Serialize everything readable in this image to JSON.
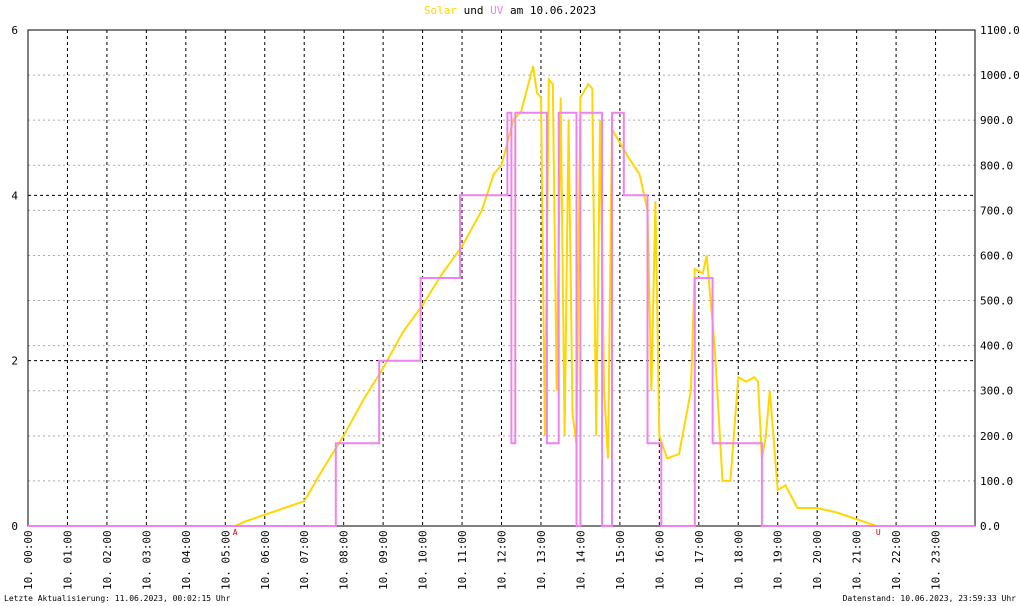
{
  "chart_data": {
    "type": "line",
    "title_and": "und",
    "title_date": "am 10.06.2023",
    "xlim": [
      0,
      24
    ],
    "xticks": [
      {
        "value": 0,
        "label": "10. 00:00"
      },
      {
        "value": 1,
        "label": "10. 01:00"
      },
      {
        "value": 2,
        "label": "10. 02:00"
      },
      {
        "value": 3,
        "label": "10. 03:00"
      },
      {
        "value": 4,
        "label": "10. 04:00"
      },
      {
        "value": 5,
        "label": "10. 05:00"
      },
      {
        "value": 6,
        "label": "10. 06:00"
      },
      {
        "value": 7,
        "label": "10. 07:00"
      },
      {
        "value": 8,
        "label": "10. 08:00"
      },
      {
        "value": 9,
        "label": "10. 09:00"
      },
      {
        "value": 10,
        "label": "10. 10:00"
      },
      {
        "value": 11,
        "label": "10. 11:00"
      },
      {
        "value": 12,
        "label": "10. 12:00"
      },
      {
        "value": 13,
        "label": "10. 13:00"
      },
      {
        "value": 14,
        "label": "10. 14:00"
      },
      {
        "value": 15,
        "label": "10. 15:00"
      },
      {
        "value": 16,
        "label": "10. 16:00"
      },
      {
        "value": 17,
        "label": "10. 17:00"
      },
      {
        "value": 18,
        "label": "10. 18:00"
      },
      {
        "value": 19,
        "label": "10. 19:00"
      },
      {
        "value": 20,
        "label": "10. 20:00"
      },
      {
        "value": 21,
        "label": "10. 21:00"
      },
      {
        "value": 22,
        "label": "10. 22:00"
      },
      {
        "value": 23,
        "label": "10. 23:00"
      }
    ],
    "ylim": [
      0,
      6
    ],
    "yticks": [
      0,
      2,
      4,
      6
    ],
    "y2lim": [
      0,
      1100
    ],
    "y2ticks": [
      {
        "value": 0,
        "label": "0.0"
      },
      {
        "value": 100,
        "label": "100.0"
      },
      {
        "value": 200,
        "label": "200.0"
      },
      {
        "value": 300,
        "label": "300.0"
      },
      {
        "value": 400,
        "label": "400.0"
      },
      {
        "value": 500,
        "label": "500.0"
      },
      {
        "value": 600,
        "label": "600.0"
      },
      {
        "value": 700,
        "label": "700.0"
      },
      {
        "value": 800,
        "label": "800.0"
      },
      {
        "value": 900,
        "label": "900.0"
      },
      {
        "value": 1000,
        "label": "1000.0"
      },
      {
        "value": 1100,
        "label": "1100.0"
      }
    ],
    "grid": true,
    "annotations": [
      {
        "x": 5.25,
        "label": "A"
      },
      {
        "x": 21.55,
        "label": "U"
      }
    ],
    "series": [
      {
        "name": "Solar",
        "color": "#ffd700",
        "axis": "y2",
        "x": [
          0,
          5.25,
          5.5,
          6,
          6.5,
          7,
          7.5,
          8,
          8.5,
          9,
          9.5,
          10,
          10.5,
          11,
          11.5,
          11.8,
          12,
          12.3,
          12.5,
          12.8,
          12.9,
          13,
          13.1,
          13.2,
          13.3,
          13.4,
          13.5,
          13.6,
          13.7,
          13.8,
          13.9,
          14,
          14.2,
          14.3,
          14.4,
          14.5,
          14.6,
          14.7,
          14.8,
          15,
          15.2,
          15.5,
          15.7,
          15.8,
          15.9,
          16,
          16.2,
          16.5,
          16.8,
          16.9,
          17.1,
          17.2,
          17.3,
          17.4,
          17.6,
          17.8,
          18,
          18.2,
          18.4,
          18.5,
          18.6,
          18.7,
          18.8,
          19,
          19.2,
          19.5,
          20,
          20.5,
          21,
          21.5,
          24
        ],
        "values": [
          0,
          0,
          10,
          25,
          40,
          55,
          130,
          200,
          280,
          350,
          430,
          490,
          560,
          620,
          700,
          780,
          800,
          900,
          920,
          1020,
          960,
          950,
          200,
          990,
          980,
          300,
          950,
          200,
          900,
          250,
          180,
          950,
          980,
          970,
          200,
          900,
          300,
          150,
          880,
          850,
          820,
          780,
          700,
          300,
          720,
          200,
          150,
          160,
          300,
          570,
          560,
          600,
          500,
          400,
          100,
          100,
          330,
          320,
          330,
          320,
          150,
          200,
          300,
          80,
          90,
          40,
          40,
          30,
          15,
          0,
          0
        ]
      },
      {
        "name": "UV",
        "color": "#ee82ee",
        "x": [
          0,
          7.8,
          7.8,
          8.9,
          8.9,
          9.95,
          9.95,
          10.95,
          10.95,
          11.95,
          11.95,
          12.15,
          12.15,
          12.25,
          12.25,
          12.35,
          12.35,
          13.15,
          13.15,
          13.45,
          13.45,
          13.9,
          13.9,
          14.0,
          14.0,
          14.55,
          14.55,
          14.8,
          14.8,
          15.1,
          15.1,
          15.7,
          15.7,
          16.05,
          16.05,
          16.9,
          16.9,
          17.35,
          17.35,
          18.0,
          18.0,
          18.6,
          18.6,
          24
        ],
        "values": [
          0,
          0,
          1,
          1,
          2,
          2,
          3,
          3,
          4,
          4,
          4,
          4,
          5,
          5,
          1,
          1,
          5,
          5,
          1,
          1,
          5,
          5,
          0,
          0,
          5,
          5,
          0,
          0,
          5,
          5,
          4,
          4,
          1,
          1,
          0,
          0,
          3,
          3,
          1,
          1,
          1,
          1,
          0,
          0
        ]
      }
    ],
    "footer_left": "Letzte Aktualisierung: 11.06.2023, 00:02:15 Uhr",
    "footer_right": "Datenstand: 10.06.2023, 23:59:33 Uhr"
  }
}
